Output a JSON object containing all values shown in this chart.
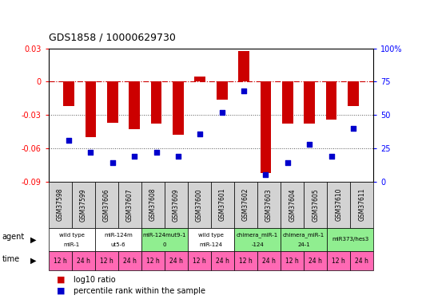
{
  "title": "GDS1858 / 10000629730",
  "samples": [
    "GSM37598",
    "GSM37599",
    "GSM37606",
    "GSM37607",
    "GSM37608",
    "GSM37609",
    "GSM37600",
    "GSM37601",
    "GSM37602",
    "GSM37603",
    "GSM37604",
    "GSM37605",
    "GSM37610",
    "GSM37611"
  ],
  "log10_ratio": [
    -0.022,
    -0.05,
    -0.037,
    -0.043,
    -0.038,
    -0.048,
    0.005,
    -0.016,
    0.028,
    -0.082,
    -0.038,
    -0.038,
    -0.034,
    -0.022
  ],
  "percentile_rank": [
    31,
    22,
    14,
    19,
    22,
    19,
    36,
    52,
    68,
    5,
    14,
    28,
    19,
    40
  ],
  "ylim_left": [
    -0.09,
    0.03
  ],
  "ylim_right": [
    0,
    100
  ],
  "yticks_left": [
    -0.09,
    -0.06,
    -0.03,
    0,
    0.03
  ],
  "yticks_right": [
    0,
    25,
    50,
    75,
    100
  ],
  "agent_groups": [
    {
      "label": "wild type\nmiR-1",
      "cols": [
        0,
        1
      ],
      "color": "#ffffff"
    },
    {
      "label": "miR-124m\nut5-6",
      "cols": [
        2,
        3
      ],
      "color": "#ffffff"
    },
    {
      "label": "miR-124mut9-1\n0",
      "cols": [
        4,
        5
      ],
      "color": "#90ee90"
    },
    {
      "label": "wild type\nmiR-124",
      "cols": [
        6,
        7
      ],
      "color": "#ffffff"
    },
    {
      "label": "chimera_miR-1\n-124",
      "cols": [
        8,
        9
      ],
      "color": "#90ee90"
    },
    {
      "label": "chimera_miR-1\n24-1",
      "cols": [
        10,
        11
      ],
      "color": "#90ee90"
    },
    {
      "label": "miR373/hes3",
      "cols": [
        12,
        13
      ],
      "color": "#90ee90"
    }
  ],
  "time_labels": [
    "12 h",
    "24 h",
    "12 h",
    "24 h",
    "12 h",
    "24 h",
    "12 h",
    "24 h",
    "12 h",
    "24 h",
    "12 h",
    "24 h",
    "12 h",
    "24 h"
  ],
  "time_color": "#ff69b4",
  "bar_color": "#cc0000",
  "dot_color": "#0000cc",
  "hline_color": "#cc0000",
  "grid_color": "#555555",
  "bg_color": "#ffffff",
  "sample_bg_color": "#d3d3d3"
}
